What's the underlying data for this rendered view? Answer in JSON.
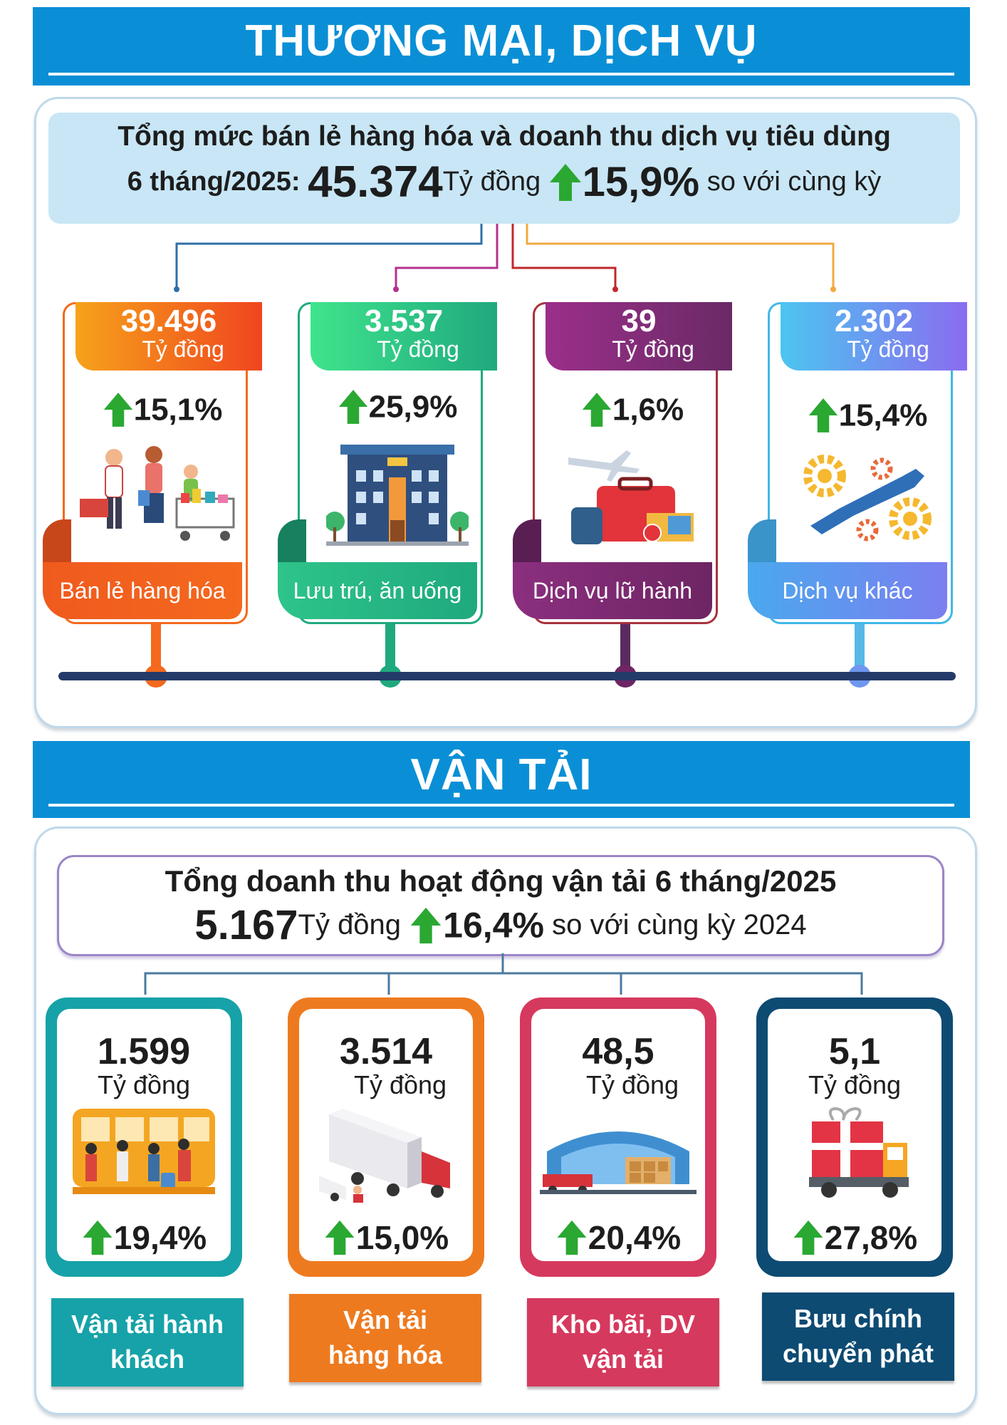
{
  "trade": {
    "title": "THƯƠNG MẠI, DỊCH VỤ",
    "summary": {
      "line1": "Tổng mức bán lẻ hàng hóa và doanh thu dịch vụ tiêu dùng",
      "period": "6 tháng/2025:",
      "value": "45.374",
      "unit": "Tỷ đồng",
      "growth": "15,9%",
      "suffix": "so với cùng kỳ"
    },
    "cards": [
      {
        "value": "39.496",
        "unit": "Tỷ đồng",
        "growth": "15,1%",
        "label": "Bán lẻ hàng hóa",
        "color": "#f4691e",
        "icon": "shopping-family-icon"
      },
      {
        "value": "3.537",
        "unit": "Tỷ đồng",
        "growth": "25,9%",
        "label": "Lưu trú, ăn uống",
        "color": "#1fa97e",
        "icon": "hotel-icon"
      },
      {
        "value": "39",
        "unit": "Tỷ đồng",
        "growth": "1,6%",
        "label": "Dịch vụ lữ hành",
        "color": "#7e2a6e",
        "icon": "travel-luggage-icon"
      },
      {
        "value": "2.302",
        "unit": "Tỷ đồng",
        "growth": "15,4%",
        "label": "Dịch vụ khác",
        "color": "#6a8ef0",
        "icon": "gears-wrench-icon"
      }
    ]
  },
  "transport": {
    "title": "VẬN TẢI",
    "summary": {
      "line1": "Tổng doanh thu hoạt động vận tải 6 tháng/2025",
      "value": "5.167",
      "unit": "Tỷ đồng",
      "growth": "16,4%",
      "suffix": "so với cùng kỳ 2024"
    },
    "cards": [
      {
        "value": "1.599",
        "unit": "Tỷ đồng",
        "growth": "19,4%",
        "label": "Vận tải hành\nkhách",
        "color": "#16a2a8",
        "icon": "bus-passengers-icon"
      },
      {
        "value": "3.514",
        "unit": "Tỷ đồng",
        "growth": "15,0%",
        "label": "Vận tải\nhàng hóa",
        "color": "#ee7a1f",
        "icon": "cargo-truck-icon"
      },
      {
        "value": "48,5",
        "unit": "Tỷ đồng",
        "growth": "20,4%",
        "label": "Kho bãi, DV\nvận tải",
        "color": "#d6395e",
        "icon": "warehouse-icon"
      },
      {
        "value": "5,1",
        "unit": "Tỷ đồng",
        "growth": "27,8%",
        "label": "Bưu chính\nchuyển phát",
        "color": "#0d4b73",
        "icon": "delivery-gift-truck-icon"
      }
    ]
  },
  "colors": {
    "banner": "#0a8fd6",
    "arrow_up": "#2aa832",
    "timeline": "#243a68"
  }
}
